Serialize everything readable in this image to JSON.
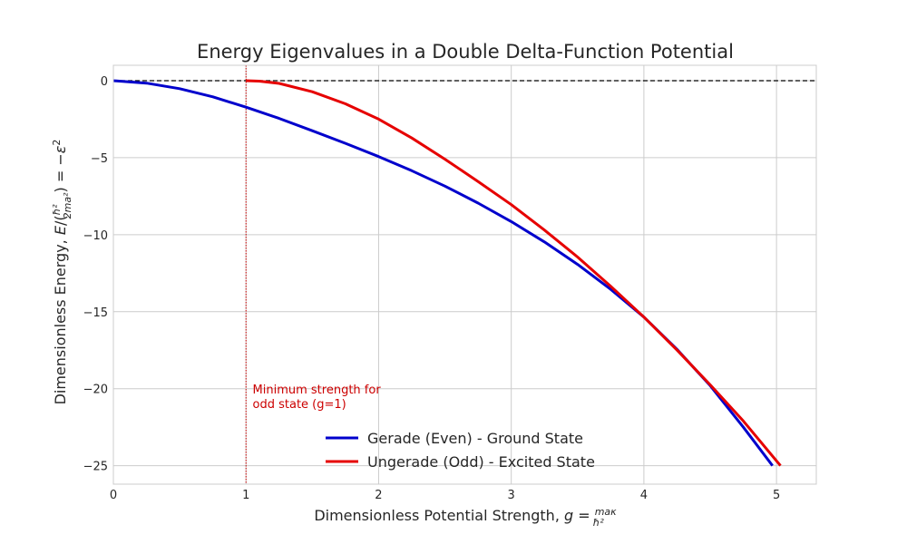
{
  "chart_data": {
    "type": "line",
    "title": "Energy Eigenvalues in a Double Delta-Function Potential",
    "xlabel": "Dimensionless Potential Strength, g = maκ/ħ²",
    "ylabel": "Dimensionless Energy, E/(ħ²/2ma²) = −ε²",
    "xlim": [
      0,
      5.3
    ],
    "ylim": [
      -26.2,
      1.0
    ],
    "xticks": [
      0,
      1,
      2,
      3,
      4,
      5
    ],
    "yticks": [
      0,
      -5,
      -10,
      -15,
      -20,
      -25
    ],
    "xtick_labels": [
      "0",
      "1",
      "2",
      "3",
      "4",
      "5"
    ],
    "ytick_labels": [
      "0",
      "−5",
      "−10",
      "−15",
      "−20",
      "−25"
    ],
    "grid": true,
    "series": [
      {
        "name": "Gerade (Even) - Ground State",
        "color": "#0000cc",
        "x": [
          0,
          0.25,
          0.5,
          0.75,
          1.0,
          1.25,
          1.5,
          1.75,
          2.0,
          2.25,
          2.5,
          2.75,
          3.0,
          3.25,
          3.5,
          3.75,
          4.0,
          4.25,
          4.5,
          4.75,
          4.97
        ],
        "y": [
          0,
          -0.16,
          -0.52,
          -1.05,
          -1.72,
          -2.45,
          -3.25,
          -4.07,
          -4.93,
          -5.85,
          -6.85,
          -7.95,
          -9.15,
          -10.47,
          -11.93,
          -13.55,
          -15.35,
          -17.45,
          -19.8,
          -22.5,
          -25.0
        ]
      },
      {
        "name": "Ungerade (Odd) - Excited State",
        "color": "#e60000",
        "x": [
          1.0,
          1.1,
          1.25,
          1.5,
          1.75,
          2.0,
          2.25,
          2.5,
          2.75,
          3.0,
          3.25,
          3.5,
          3.75,
          4.0,
          4.25,
          4.5,
          4.75,
          5.03
        ],
        "y": [
          0,
          -0.03,
          -0.18,
          -0.72,
          -1.5,
          -2.5,
          -3.72,
          -5.1,
          -6.55,
          -8.05,
          -9.7,
          -11.45,
          -13.35,
          -15.35,
          -17.5,
          -19.75,
          -22.1,
          -25.0
        ]
      }
    ],
    "reference_lines": [
      {
        "orientation": "horizontal",
        "value": 0,
        "style": "dashed",
        "color": "#000000"
      },
      {
        "orientation": "vertical",
        "value": 1,
        "style": "dotted",
        "color": "#cc0000"
      }
    ],
    "annotation": {
      "text_line1": "Minimum strength for",
      "text_line2": "odd state (g=1)",
      "x": 1.05,
      "y": -20.3,
      "color": "#cc0000"
    },
    "legend_position": "lower center"
  }
}
